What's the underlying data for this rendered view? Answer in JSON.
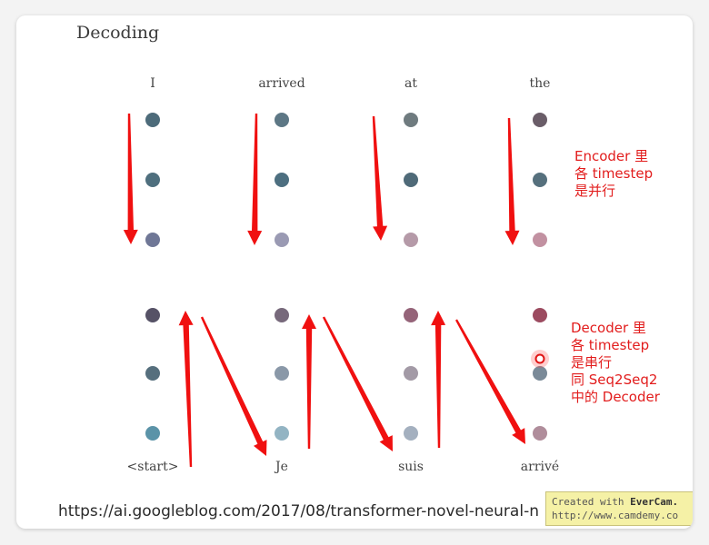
{
  "title": "Decoding",
  "top_words": [
    "I",
    "arrived",
    "at",
    "the"
  ],
  "bottom_words": [
    "<start>",
    "Je",
    "suis",
    "arrivé"
  ],
  "encoder_note": [
    "Encoder 里",
    "各 timestep",
    "是并行"
  ],
  "decoder_note": [
    "Decoder 里",
    "各 timestep",
    "是串行",
    "同 Seq2Seq2",
    "中的 Decoder"
  ],
  "source_url": "https://ai.googleblog.com/2017/08/transformer-novel-neural-n",
  "watermark": {
    "prefix": "Created with ",
    "brand": "EverCam.",
    "url": "http://www.camdemy.co"
  },
  "colors": {
    "arrow": "#f01010",
    "encoder_nodes": [
      [
        "#4d6b7a",
        "#4f6f7e",
        "#6f7796"
      ],
      [
        "#5d7785",
        "#4d6f80",
        "#9a9ab3"
      ],
      [
        "#6f7b7f",
        "#4f6a78",
        "#b59aa8"
      ],
      [
        "#6a5d68",
        "#56707d",
        "#c291a1"
      ]
    ],
    "decoder_nodes": [
      [
        "#565266",
        "#566f7d",
        "#5b93a8"
      ],
      [
        "#77697b",
        "#8a98a8",
        "#93b4c3"
      ],
      [
        "#956479",
        "#a39aa6",
        "#a4b0bf"
      ],
      [
        "#9c4b60",
        "#7a8a98",
        "#b08d9b"
      ]
    ]
  }
}
